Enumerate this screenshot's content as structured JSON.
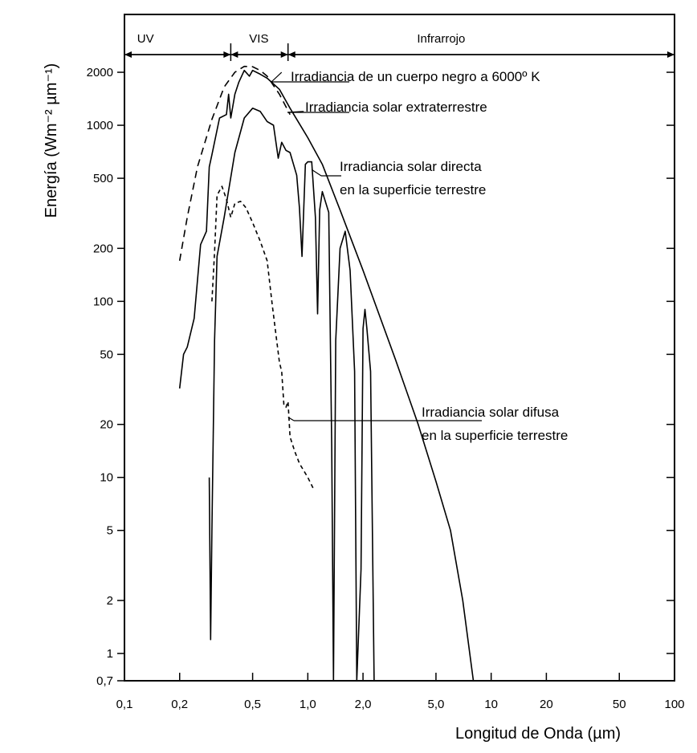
{
  "chart_data": {
    "type": "line",
    "xlabel": "Longitud de Onda (µm)",
    "ylabel": "Energía (Wm⁻² µm⁻¹)",
    "xscale": "log",
    "yscale": "log",
    "xlim": [
      0.1,
      100
    ],
    "ylim": [
      0.7,
      4000
    ],
    "x_ticks": [
      0.1,
      0.2,
      0.5,
      1.0,
      2.0,
      5.0,
      10,
      20,
      50,
      100
    ],
    "x_tick_labels": [
      "0,1",
      "0,2",
      "0,5",
      "1,0",
      "2,0",
      "5,0",
      "10",
      "20",
      "50",
      "100"
    ],
    "y_ticks": [
      0.7,
      1,
      2,
      5,
      10,
      20,
      50,
      100,
      200,
      500,
      1000,
      2000
    ],
    "y_tick_labels": [
      "0,7",
      "1",
      "2",
      "5",
      "10",
      "20",
      "50",
      "100",
      "200",
      "500",
      "1000",
      "2000"
    ],
    "bands": [
      {
        "label": "UV",
        "from": 0.1,
        "to": 0.38
      },
      {
        "label": "VIS",
        "from": 0.38,
        "to": 0.78
      },
      {
        "label": "Infrarrojo",
        "from": 0.78,
        "to": 100
      }
    ],
    "series": [
      {
        "name": "Irradiancia de un cuerpo negro a 6000º K",
        "style": "dashed",
        "points": [
          [
            0.2,
            170
          ],
          [
            0.22,
            300
          ],
          [
            0.25,
            580
          ],
          [
            0.3,
            1080
          ],
          [
            0.35,
            1650
          ],
          [
            0.4,
            2000
          ],
          [
            0.45,
            2160
          ],
          [
            0.5,
            2150
          ],
          [
            0.55,
            2050
          ],
          [
            0.6,
            1900
          ],
          [
            0.7,
            1500
          ],
          [
            0.8,
            1150
          ]
        ]
      },
      {
        "name": "Irradiancia solar extraterrestre",
        "style": "solid",
        "points": [
          [
            0.2,
            32
          ],
          [
            0.21,
            50
          ],
          [
            0.22,
            55
          ],
          [
            0.24,
            80
          ],
          [
            0.26,
            210
          ],
          [
            0.28,
            250
          ],
          [
            0.29,
            580
          ],
          [
            0.3,
            680
          ],
          [
            0.33,
            1100
          ],
          [
            0.36,
            1150
          ],
          [
            0.37,
            1500
          ],
          [
            0.38,
            1100
          ],
          [
            0.4,
            1500
          ],
          [
            0.42,
            1750
          ],
          [
            0.45,
            2050
          ],
          [
            0.48,
            1900
          ],
          [
            0.5,
            2050
          ],
          [
            0.55,
            1950
          ],
          [
            0.6,
            1850
          ],
          [
            0.7,
            1600
          ],
          [
            0.8,
            1250
          ],
          [
            1.0,
            850
          ],
          [
            1.2,
            600
          ],
          [
            1.5,
            330
          ],
          [
            2.0,
            150
          ],
          [
            3.0,
            47
          ],
          [
            4.0,
            20
          ],
          [
            5.0,
            9.5
          ],
          [
            6.0,
            5
          ],
          [
            7.0,
            2
          ],
          [
            8.0,
            0.7
          ]
        ]
      },
      {
        "name": "Irradiancia solar directa en la superficie terrestre",
        "style": "solid",
        "points": [
          [
            0.29,
            10
          ],
          [
            0.295,
            1.2
          ],
          [
            0.3,
            5
          ],
          [
            0.31,
            60
          ],
          [
            0.32,
            180
          ],
          [
            0.35,
            300
          ],
          [
            0.4,
            700
          ],
          [
            0.45,
            1100
          ],
          [
            0.5,
            1250
          ],
          [
            0.55,
            1200
          ],
          [
            0.6,
            1050
          ],
          [
            0.65,
            1000
          ],
          [
            0.69,
            650
          ],
          [
            0.72,
            800
          ],
          [
            0.76,
            720
          ],
          [
            0.8,
            700
          ],
          [
            0.87,
            520
          ],
          [
            0.9,
            340
          ],
          [
            0.93,
            180
          ],
          [
            0.97,
            600
          ],
          [
            1.0,
            620
          ],
          [
            1.05,
            620
          ],
          [
            1.1,
            300
          ],
          [
            1.13,
            85
          ],
          [
            1.16,
            330
          ],
          [
            1.2,
            420
          ],
          [
            1.3,
            320
          ],
          [
            1.35,
            15
          ],
          [
            1.38,
            0.7
          ],
          [
            1.42,
            60
          ],
          [
            1.5,
            200
          ],
          [
            1.6,
            250
          ],
          [
            1.7,
            150
          ],
          [
            1.8,
            40
          ],
          [
            1.85,
            0.7
          ],
          [
            1.95,
            3
          ],
          [
            2.0,
            70
          ],
          [
            2.05,
            90
          ],
          [
            2.1,
            70
          ],
          [
            2.2,
            40
          ],
          [
            2.3,
            0.7
          ]
        ]
      },
      {
        "name": "Irradiancia solar difusa en la superficie terrestre",
        "style": "dashed",
        "points": [
          [
            0.3,
            100
          ],
          [
            0.31,
            190
          ],
          [
            0.32,
            400
          ],
          [
            0.34,
            450
          ],
          [
            0.36,
            380
          ],
          [
            0.38,
            300
          ],
          [
            0.4,
            360
          ],
          [
            0.43,
            370
          ],
          [
            0.46,
            340
          ],
          [
            0.5,
            280
          ],
          [
            0.55,
            220
          ],
          [
            0.6,
            170
          ],
          [
            0.64,
            95
          ],
          [
            0.67,
            65
          ],
          [
            0.7,
            45
          ],
          [
            0.72,
            40
          ],
          [
            0.74,
            26
          ],
          [
            0.76,
            25
          ],
          [
            0.78,
            27
          ],
          [
            0.8,
            17
          ],
          [
            0.85,
            14
          ],
          [
            0.9,
            12
          ],
          [
            1.0,
            10
          ],
          [
            1.08,
            8.5
          ]
        ]
      }
    ],
    "annotations": [
      {
        "lines": [
          "Irradiancia de un cuerpo negro a 6000º K"
        ],
        "target_x": 0.72,
        "target_y": 2000
      },
      {
        "lines": [
          "Irradiancia solar extraterrestre"
        ],
        "target_x": 0.95,
        "target_y": 1200
      },
      {
        "lines": [
          "Irradiancia solar directa",
          "en la superficie terrestre"
        ],
        "target_x": 1.05,
        "target_y": 560
      },
      {
        "lines": [
          "Irradiancia solar difusa",
          "en la superficie terrestre"
        ],
        "target_x": 0.78,
        "target_y": 22
      }
    ]
  }
}
